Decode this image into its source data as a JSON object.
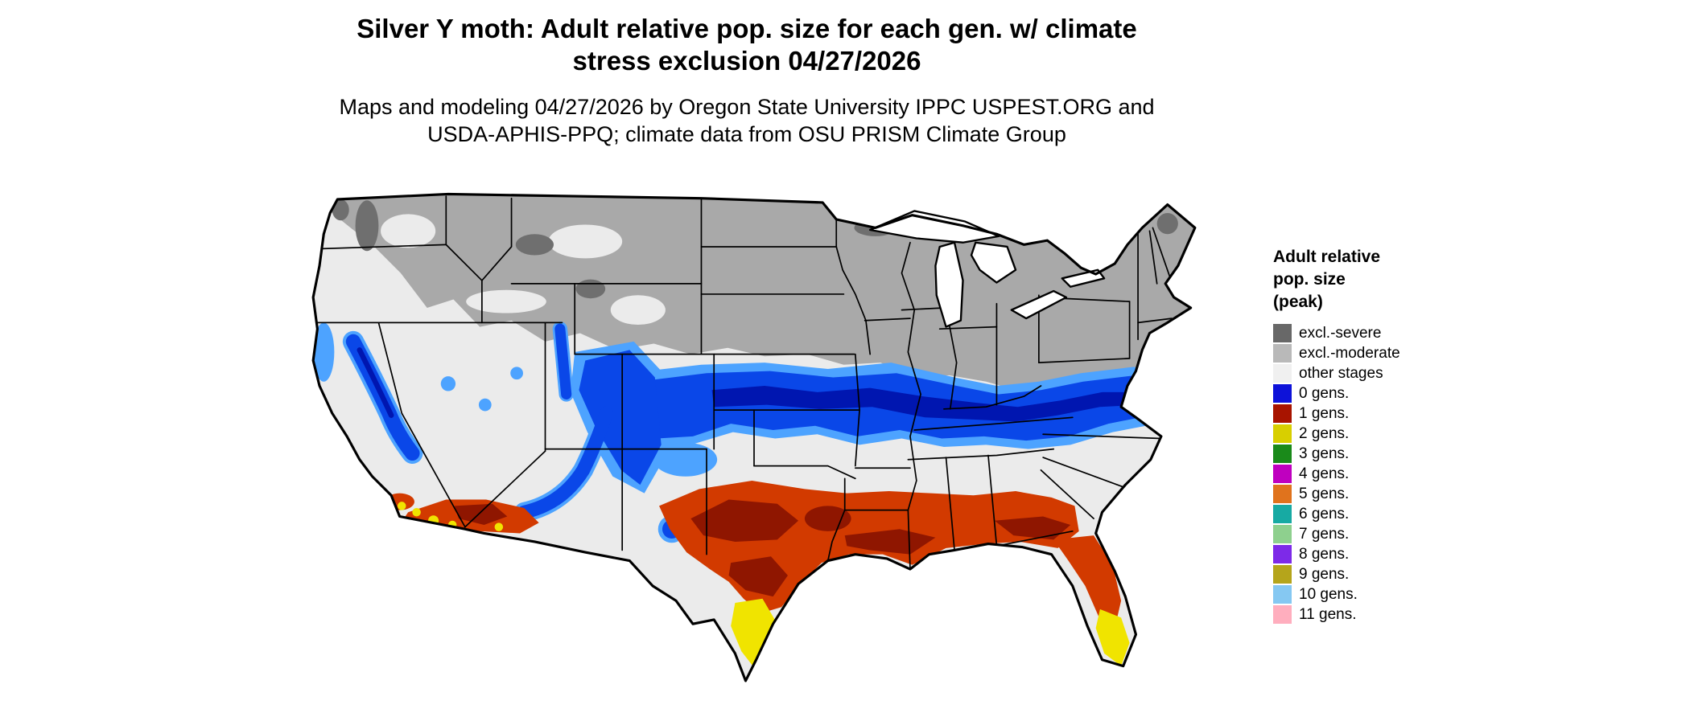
{
  "page": {
    "title_line1": "Silver Y moth: Adult relative pop. size for each gen. w/ climate",
    "title_line2": "stress exclusion 04/27/2026",
    "subtitle_line1": "Maps and modeling 04/27/2026 by Oregon State University IPPC USPEST.ORG and",
    "subtitle_line2": "USDA-APHIS-PPQ; climate data from OSU PRISM Climate Group"
  },
  "legend": {
    "title_lines": [
      "Adult relative",
      "pop. size",
      "(peak)"
    ],
    "items": [
      {
        "label": "excl.-severe",
        "color": "#686868"
      },
      {
        "label": "excl.-moderate",
        "color": "#b9b9b9"
      },
      {
        "label": "other stages",
        "color": "#f0f0f0"
      },
      {
        "label": "0 gens.",
        "color": "#0d12d9"
      },
      {
        "label": "1 gens.",
        "color": "#a81400"
      },
      {
        "label": "2 gens.",
        "color": "#d8cf00"
      },
      {
        "label": "3 gens.",
        "color": "#1a8a1a"
      },
      {
        "label": "4 gens.",
        "color": "#bf00bf"
      },
      {
        "label": "5 gens.",
        "color": "#e0731d"
      },
      {
        "label": "6 gens.",
        "color": "#17aaa3"
      },
      {
        "label": "7 gens.",
        "color": "#8ed08e"
      },
      {
        "label": "8 gens.",
        "color": "#7d2ae8"
      },
      {
        "label": "9 gens.",
        "color": "#b5a51b"
      },
      {
        "label": "10 gens.",
        "color": "#85c8f2"
      },
      {
        "label": "11 gens.",
        "color": "#ffaebe"
      }
    ]
  },
  "map": {
    "region_colors": {
      "other_stages": "#ebebeb",
      "excl_moderate": "#a9a9a9",
      "excl_severe": "#6f6f6f",
      "gens0_light": "#4da3ff",
      "gens0_mid": "#0a47e8",
      "gens0_dark": "#0016b0",
      "gens1_mid": "#d23a00",
      "gens1_dark": "#8f1600",
      "gens2": "#f0e400",
      "water": "#ffffff",
      "state_border": "#000000"
    }
  }
}
